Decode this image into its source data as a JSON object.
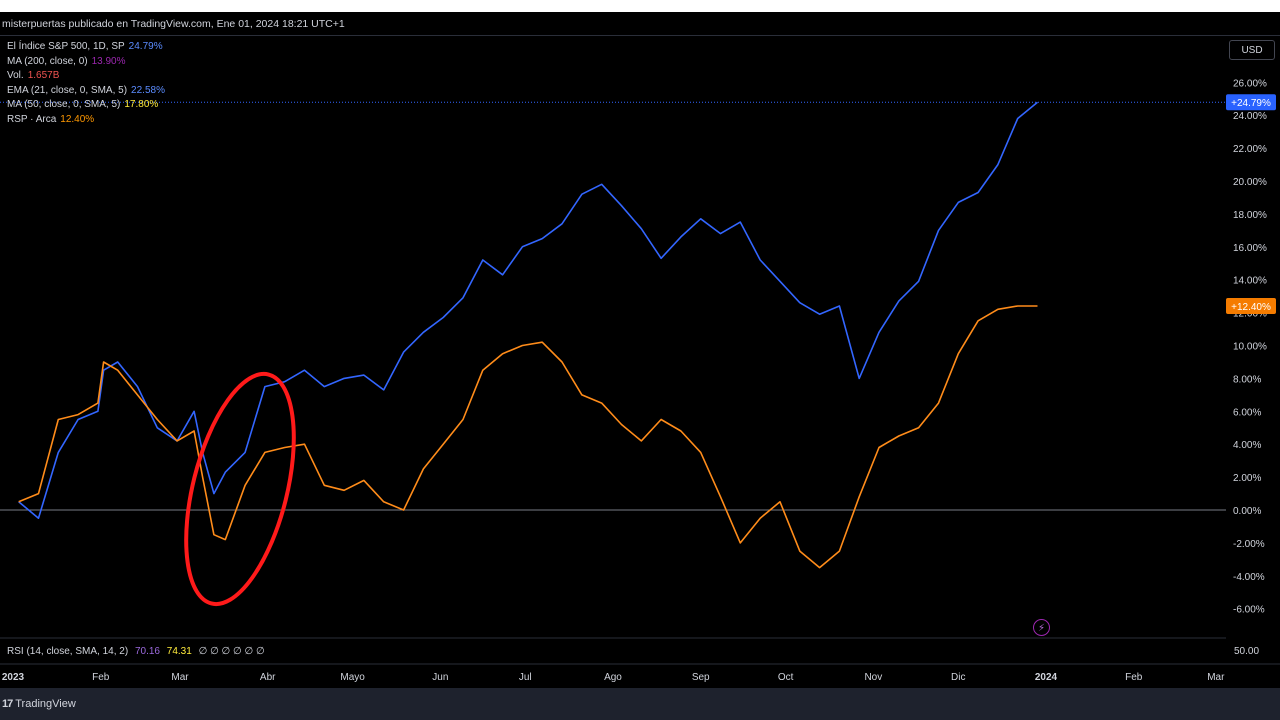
{
  "header": {
    "caption": "misterpuertas publicado en TradingView.com, Ene 01, 2024 18:21 UTC+1"
  },
  "legend": [
    {
      "label": "El Índice S&P 500, 1D, SP",
      "value": "24.79%",
      "color": "#5b8cff"
    },
    {
      "label": "MA (200, close, 0)",
      "value": "13.90%",
      "color": "#9c27b0"
    },
    {
      "label": "Vol.",
      "value": "1.657B",
      "color": "#ef5350"
    },
    {
      "label": "EMA (21, close, 0, SMA, 5)",
      "value": "22.58%",
      "color": "#5b8cff"
    },
    {
      "label": "MA (50, close, 0, SMA, 5)",
      "value": "17.80%",
      "color": "#ffeb3b"
    },
    {
      "label": "RSP · Arca",
      "value": "12.40%",
      "color": "#ff9800"
    }
  ],
  "currency_button": "USD",
  "icons": {
    "flash": "lightning-icon",
    "logo": "tradingview-logo-icon"
  },
  "rsi": {
    "label": "RSI (14, close, SMA, 14, 2)",
    "value1": "70.16",
    "value2": "74.31",
    "placeholders": "∅ ∅ ∅ ∅ ∅ ∅",
    "axis_label": "50.00"
  },
  "footer": {
    "brand": "TradingView",
    "logo": "17"
  },
  "chart_data": {
    "type": "line",
    "ylim": [
      -7,
      27
    ],
    "y_ticks": [
      "26.00%",
      "24.00%",
      "22.00%",
      "20.00%",
      "18.00%",
      "16.00%",
      "14.00%",
      "12.00%",
      "10.00%",
      "8.00%",
      "6.00%",
      "4.00%",
      "2.00%",
      "0.00%",
      "-2.00%",
      "-4.00%",
      "-6.00%"
    ],
    "x_tick_labels": [
      "2023",
      "Feb",
      "Mar",
      "Abr",
      "Mayo",
      "Jun",
      "Jul",
      "Ago",
      "Sep",
      "Oct",
      "Nov",
      "Dic",
      "2024",
      "Feb",
      "Mar"
    ],
    "x_ticks": [
      "2023-01-01",
      "2023-02-01",
      "2023-03-01",
      "2023-04-01",
      "2023-05-01",
      "2023-06-01",
      "2023-07-01",
      "2023-08-01",
      "2023-09-01",
      "2023-10-01",
      "2023-11-01",
      "2023-12-01",
      "2024-01-01",
      "2024-02-01",
      "2024-03-01"
    ],
    "x": [
      "2023-01-03",
      "2023-01-10",
      "2023-01-17",
      "2023-01-24",
      "2023-01-31",
      "2023-02-02",
      "2023-02-07",
      "2023-02-14",
      "2023-02-21",
      "2023-02-28",
      "2023-03-06",
      "2023-03-09",
      "2023-03-13",
      "2023-03-17",
      "2023-03-24",
      "2023-03-31",
      "2023-04-07",
      "2023-04-14",
      "2023-04-21",
      "2023-04-28",
      "2023-05-05",
      "2023-05-12",
      "2023-05-19",
      "2023-05-26",
      "2023-06-02",
      "2023-06-09",
      "2023-06-16",
      "2023-06-23",
      "2023-06-30",
      "2023-07-07",
      "2023-07-14",
      "2023-07-21",
      "2023-07-28",
      "2023-08-04",
      "2023-08-11",
      "2023-08-18",
      "2023-08-25",
      "2023-09-01",
      "2023-09-08",
      "2023-09-15",
      "2023-09-22",
      "2023-09-29",
      "2023-10-06",
      "2023-10-13",
      "2023-10-20",
      "2023-10-27",
      "2023-11-03",
      "2023-11-10",
      "2023-11-17",
      "2023-11-24",
      "2023-12-01",
      "2023-12-08",
      "2023-12-15",
      "2023-12-22",
      "2023-12-29"
    ],
    "series": [
      {
        "name": "El Índice S&P 500, 1D, SP",
        "color": "#3366ff",
        "last_label": "+24.79%",
        "values": [
          0.5,
          -0.5,
          3.5,
          5.5,
          6.0,
          8.5,
          9.0,
          7.5,
          5.0,
          4.2,
          6.0,
          3.5,
          1.0,
          2.3,
          3.5,
          7.5,
          7.8,
          8.5,
          7.5,
          8.0,
          8.2,
          7.3,
          9.6,
          10.8,
          11.7,
          12.9,
          15.2,
          14.3,
          16.0,
          16.5,
          17.4,
          19.2,
          19.8,
          18.5,
          17.1,
          15.3,
          16.6,
          17.7,
          16.8,
          17.5,
          15.2,
          13.9,
          12.6,
          11.9,
          12.4,
          8.0,
          10.8,
          12.7,
          13.9,
          17.0,
          18.7,
          19.3,
          21.0,
          23.8,
          24.79
        ]
      },
      {
        "name": "RSP · Arca",
        "color": "#ff8c1a",
        "last_label": "+12.40%",
        "values": [
          0.5,
          1.0,
          5.5,
          5.8,
          6.5,
          9.0,
          8.5,
          7.0,
          5.5,
          4.2,
          4.8,
          2.0,
          -1.5,
          -1.8,
          1.5,
          3.5,
          3.8,
          4.0,
          1.5,
          1.2,
          1.8,
          0.5,
          0.0,
          2.5,
          4.0,
          5.5,
          8.5,
          9.5,
          10.0,
          10.2,
          9.0,
          7.0,
          6.5,
          5.2,
          4.2,
          5.5,
          4.8,
          3.5,
          0.8,
          -2.0,
          -0.5,
          0.5,
          -2.5,
          -3.5,
          -2.5,
          0.8,
          3.8,
          4.5,
          5.0,
          6.5,
          9.5,
          11.5,
          12.2,
          12.4,
          12.4
        ]
      }
    ],
    "annotation": {
      "type": "ellipse",
      "color": "#ff1a1a"
    }
  }
}
